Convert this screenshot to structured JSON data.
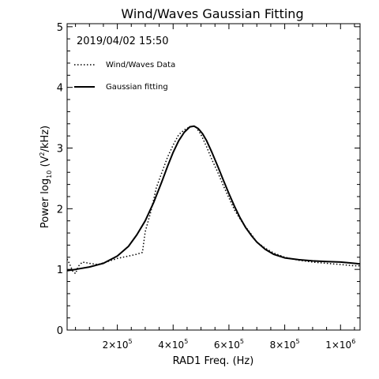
{
  "chart_data": {
    "type": "line",
    "title": "Wind/Waves Gaussian Fitting",
    "annotation": "2019/04/02 15:50",
    "xlabel": "RAD1 Freq. (Hz)",
    "ylabel": {
      "prefix": "Power log",
      "subscript": "10",
      "middle": " (V",
      "superscript": "2",
      "suffix": "/kHz)"
    },
    "xlim": [
      20000,
      1070000
    ],
    "ylim": [
      0,
      5.05
    ],
    "grid": false,
    "legend_position": "top-left",
    "x_ticks": [
      {
        "value": 200000,
        "mantissa": "2×10",
        "exp": "5"
      },
      {
        "value": 400000,
        "mantissa": "4×10",
        "exp": "5"
      },
      {
        "value": 600000,
        "mantissa": "6×10",
        "exp": "5"
      },
      {
        "value": 800000,
        "mantissa": "8×10",
        "exp": "5"
      },
      {
        "value": 1000000,
        "mantissa": "1×10",
        "exp": "6"
      }
    ],
    "y_ticks": [
      0,
      1,
      2,
      3,
      4,
      5
    ],
    "series": [
      {
        "name": "Wind/Waves Data",
        "style": "dotted",
        "color": "#000000",
        "x": [
          20000,
          28000,
          40000,
          50000,
          60000,
          75000,
          100000,
          130000,
          160000,
          200000,
          240000,
          270000,
          290000,
          300000,
          320000,
          340000,
          360000,
          380000,
          400000,
          420000,
          440000,
          460000,
          480000,
          500000,
          520000,
          540000,
          560000,
          580000,
          600000,
          620000,
          640000,
          660000,
          680000,
          700000,
          730000,
          760000,
          800000,
          850000,
          900000,
          950000,
          1000000,
          1050000,
          1070000
        ],
        "y": [
          1.17,
          1.1,
          0.97,
          0.93,
          1.05,
          1.12,
          1.1,
          1.08,
          1.12,
          1.18,
          1.22,
          1.25,
          1.28,
          1.62,
          1.95,
          2.35,
          2.6,
          2.85,
          3.05,
          3.22,
          3.3,
          3.35,
          3.36,
          3.22,
          3.02,
          2.8,
          2.6,
          2.38,
          2.18,
          1.98,
          1.83,
          1.7,
          1.58,
          1.45,
          1.35,
          1.27,
          1.2,
          1.15,
          1.12,
          1.1,
          1.08,
          1.06,
          1.06
        ]
      },
      {
        "name": "Gaussian fitting",
        "style": "solid",
        "color": "#000000",
        "x": [
          20000,
          50000,
          100000,
          150000,
          200000,
          240000,
          270000,
          300000,
          330000,
          360000,
          380000,
          400000,
          420000,
          440000,
          460000,
          475000,
          490000,
          505000,
          520000,
          540000,
          560000,
          580000,
          600000,
          620000,
          640000,
          660000,
          680000,
          700000,
          730000,
          760000,
          800000,
          850000,
          900000,
          950000,
          1000000,
          1050000,
          1070000
        ],
        "y": [
          0.98,
          1.0,
          1.04,
          1.1,
          1.22,
          1.38,
          1.57,
          1.8,
          2.1,
          2.45,
          2.7,
          2.93,
          3.12,
          3.26,
          3.35,
          3.36,
          3.32,
          3.24,
          3.12,
          2.92,
          2.7,
          2.47,
          2.25,
          2.04,
          1.85,
          1.69,
          1.56,
          1.45,
          1.33,
          1.25,
          1.19,
          1.16,
          1.14,
          1.13,
          1.12,
          1.1,
          1.09
        ]
      }
    ]
  }
}
